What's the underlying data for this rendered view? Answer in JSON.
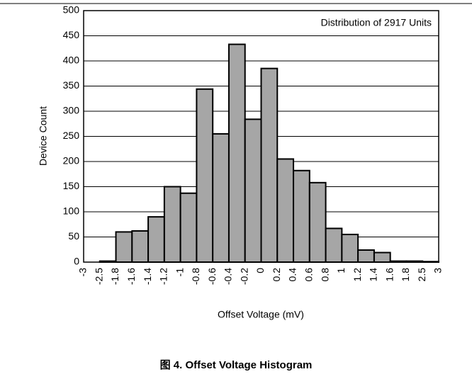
{
  "chart_data": {
    "type": "histogram",
    "annotation": "Distribution of 2917 Units",
    "xlabel": "Offset Voltage (mV)",
    "ylabel": "Device Count",
    "caption": "图 4. Offset Voltage Histogram",
    "bins": [
      -3,
      -2.5,
      -1.8,
      -1.6,
      -1.4,
      -1.2,
      -1,
      -0.8,
      -0.6,
      -0.4,
      -0.2,
      0,
      0.2,
      0.4,
      0.6,
      0.8,
      1,
      1.2,
      1.4,
      1.6,
      1.8,
      2.5,
      3
    ],
    "values": [
      0,
      2,
      60,
      62,
      90,
      150,
      137,
      344,
      255,
      433,
      284,
      385,
      205,
      182,
      158,
      67,
      55,
      24,
      19,
      2,
      2,
      1
    ],
    "color": "#a6a6a6",
    "ylim": [
      0,
      500
    ],
    "yticks": [
      0,
      50,
      100,
      150,
      200,
      250,
      300,
      350,
      400,
      450,
      500
    ],
    "grid": true
  }
}
